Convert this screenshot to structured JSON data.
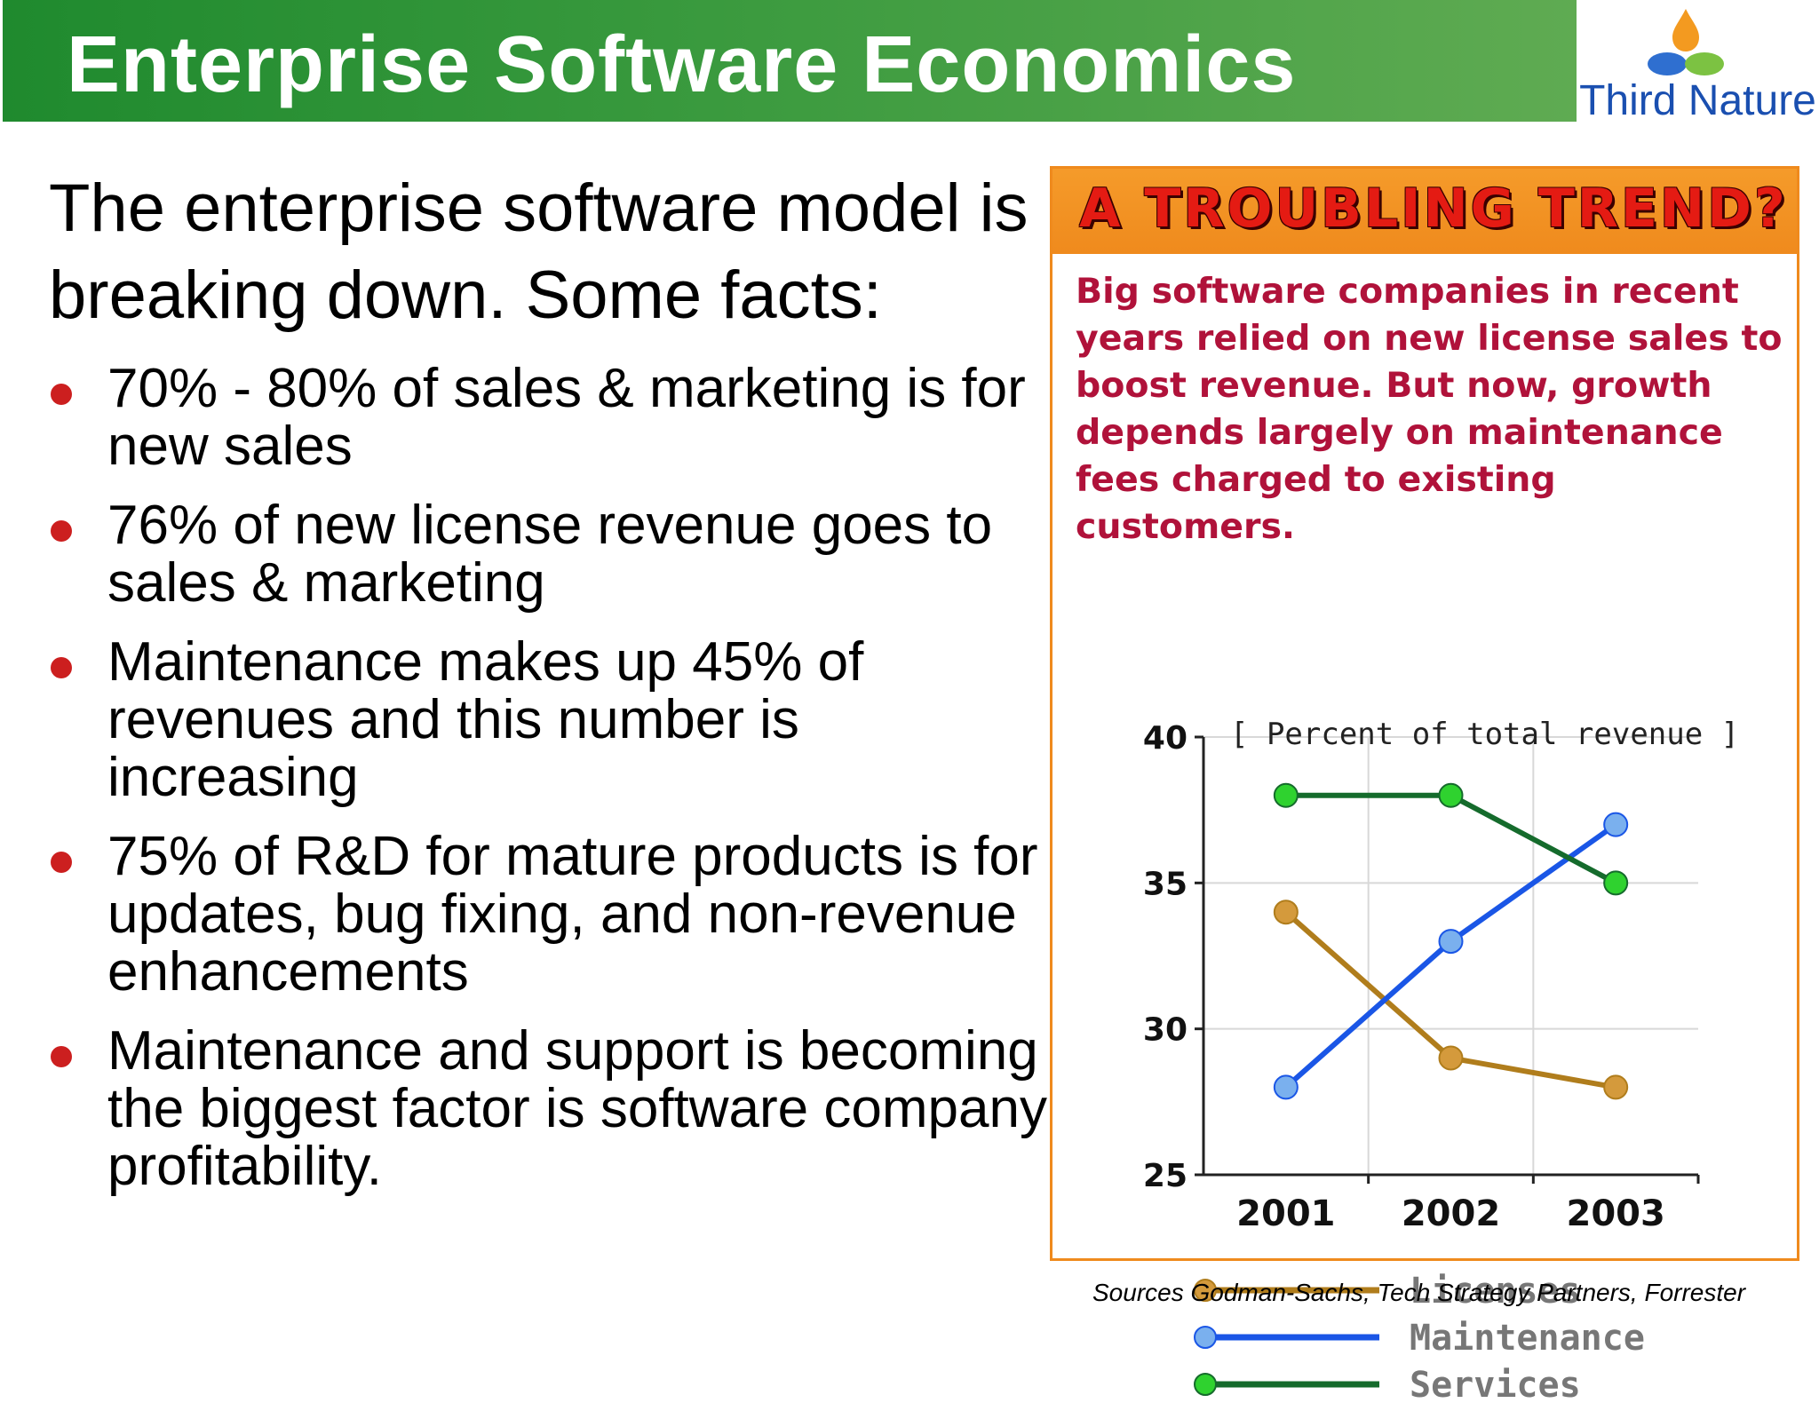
{
  "slide": {
    "title": "Enterprise Software Economics",
    "logo_text": "Third Nature",
    "intro": "The enterprise software model is breaking down. Some facts:",
    "bullets": [
      "70% - 80% of sales & marketing is for new sales",
      "76% of new license revenue goes to sales & marketing",
      "Maintenance makes up 45% of revenues and this number is increasing",
      "75% of R&D for mature products is for updates, bug fixing, and non-revenue enhancements",
      "Maintenance and support is becoming the biggest factor is software company profitability."
    ],
    "sources": "Sources Godman-Sachs, Tech Strategy Partners, Forrester"
  },
  "panel": {
    "heading": "A TROUBLING TREND?",
    "description": "Big software companies in recent years relied on new license sales to boost revenue. But now, growth depends largely on maintenance fees charged to existing customers."
  },
  "colors": {
    "title_bar": "#2e9436",
    "panel_border": "#ef8a1d",
    "heading_text": "#e41b13",
    "description_text": "#b0123a",
    "bullet_dot": "#cc1f1f"
  },
  "chart_data": {
    "type": "line",
    "title": "[ Percent of total revenue ]",
    "categories": [
      "2001",
      "2002",
      "2003"
    ],
    "ylim": [
      25,
      40
    ],
    "yticks": [
      25,
      30,
      35,
      40
    ],
    "grid": true,
    "legend_position": "bottom",
    "series": [
      {
        "name": "Licenses",
        "values": [
          34,
          29,
          28
        ],
        "color": "#b07d1c",
        "marker": "#d49a3c"
      },
      {
        "name": "Maintenance",
        "values": [
          28,
          33,
          37
        ],
        "color": "#1a56e6",
        "marker": "#7ab0ee"
      },
      {
        "name": "Services",
        "values": [
          38,
          38,
          35
        ],
        "color": "#156b2c",
        "marker": "#2fd22f"
      }
    ]
  }
}
